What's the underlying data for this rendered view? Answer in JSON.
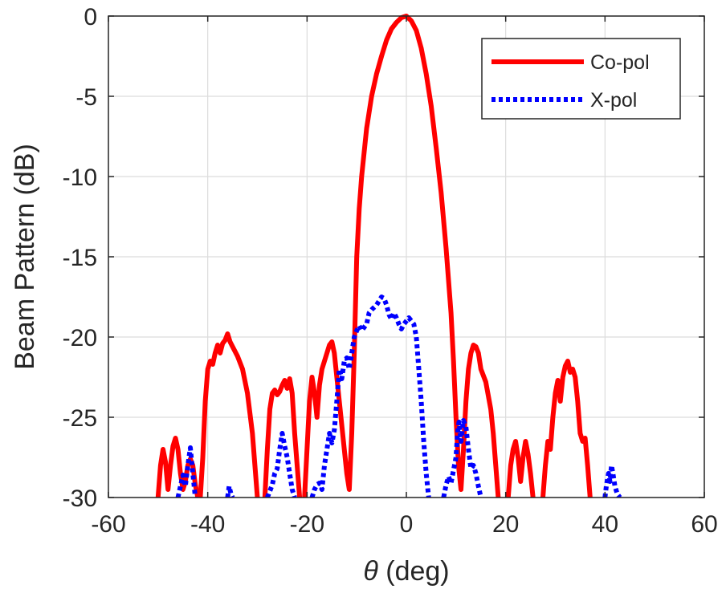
{
  "chart_data": {
    "type": "line",
    "xlabel_symbol": "θ",
    "xlabel_unit": " (deg)",
    "ylabel": "Beam Pattern (dB)",
    "xlim": [
      -60,
      60
    ],
    "ylim": [
      -30,
      0
    ],
    "xticks": [
      -60,
      -40,
      -20,
      0,
      20,
      40,
      60
    ],
    "yticks": [
      0,
      -5,
      -10,
      -15,
      -20,
      -25,
      -30
    ],
    "grid": true,
    "legend_location": "top-right",
    "series": [
      {
        "name": "Co-pol",
        "color": "#ff0000",
        "style": "solid",
        "segments": [
          [
            [
              -50,
              -30
            ],
            [
              -49.5,
              -28
            ],
            [
              -49,
              -27
            ],
            [
              -48.5,
              -27.8
            ],
            [
              -48,
              -29.5
            ],
            [
              -47.5,
              -28
            ],
            [
              -47,
              -26.8
            ],
            [
              -46.5,
              -26.3
            ],
            [
              -46,
              -27
            ],
            [
              -45.5,
              -28.5
            ],
            [
              -45,
              -29.5
            ],
            [
              -44.5,
              -29
            ],
            [
              -44,
              -28
            ],
            [
              -43.5,
              -27.6
            ],
            [
              -43,
              -28
            ],
            [
              -42.5,
              -29.2
            ],
            [
              -42,
              -30
            ]
          ],
          [
            [
              -41.5,
              -30
            ],
            [
              -41,
              -27.5
            ],
            [
              -40.5,
              -24
            ],
            [
              -40,
              -22
            ],
            [
              -39.5,
              -21.5
            ],
            [
              -39,
              -21.7
            ],
            [
              -38.5,
              -21
            ],
            [
              -38,
              -20.5
            ],
            [
              -37.5,
              -21
            ],
            [
              -37,
              -20.4
            ],
            [
              -36.5,
              -20.2
            ],
            [
              -36,
              -19.8
            ],
            [
              -35.5,
              -20.3
            ],
            [
              -35,
              -20.6
            ],
            [
              -34,
              -21.2
            ],
            [
              -33,
              -22
            ],
            [
              -32,
              -23.5
            ],
            [
              -31,
              -26
            ],
            [
              -30.5,
              -28
            ],
            [
              -30,
              -30
            ]
          ],
          [
            [
              -28.5,
              -30
            ],
            [
              -28,
              -27
            ],
            [
              -27.5,
              -24.5
            ],
            [
              -27,
              -23.5
            ],
            [
              -26.5,
              -23.3
            ],
            [
              -26,
              -23.6
            ],
            [
              -25.5,
              -23.4
            ],
            [
              -25,
              -23
            ],
            [
              -24.5,
              -22.7
            ],
            [
              -24,
              -23.2
            ],
            [
              -23.5,
              -22.6
            ],
            [
              -23,
              -23.5
            ],
            [
              -22.5,
              -26
            ],
            [
              -22,
              -28
            ],
            [
              -21.5,
              -30
            ]
          ],
          [
            [
              -20.5,
              -30
            ],
            [
              -20,
              -27
            ],
            [
              -19.5,
              -24
            ],
            [
              -19,
              -22.5
            ],
            [
              -18.5,
              -23.5
            ],
            [
              -18,
              -25
            ],
            [
              -17.5,
              -23
            ],
            [
              -17,
              -22
            ],
            [
              -16.5,
              -21.5
            ],
            [
              -16,
              -21
            ],
            [
              -15.5,
              -20.5
            ],
            [
              -15,
              -20.3
            ],
            [
              -14.5,
              -21
            ],
            [
              -14,
              -22.5
            ],
            [
              -13.5,
              -24
            ],
            [
              -13,
              -25.5
            ],
            [
              -12.5,
              -27
            ],
            [
              -12,
              -28.5
            ],
            [
              -11.5,
              -29.5
            ],
            [
              -11,
              -26
            ],
            [
              -10.5,
              -21
            ],
            [
              -10,
              -15
            ],
            [
              -9.5,
              -12
            ],
            [
              -9,
              -10
            ],
            [
              -8,
              -7
            ],
            [
              -7,
              -5
            ],
            [
              -6,
              -3.6
            ],
            [
              -5,
              -2.5
            ],
            [
              -4,
              -1.5
            ],
            [
              -3,
              -0.8
            ],
            [
              -2,
              -0.4
            ],
            [
              -1,
              -0.1
            ],
            [
              0,
              0
            ],
            [
              1,
              -0.3
            ],
            [
              2,
              -0.9
            ],
            [
              3,
              -2
            ],
            [
              4,
              -3.6
            ],
            [
              5,
              -5.6
            ],
            [
              6,
              -8.2
            ],
            [
              7,
              -11
            ],
            [
              8,
              -14.5
            ],
            [
              9,
              -18.5
            ],
            [
              9.5,
              -21.5
            ],
            [
              10,
              -25
            ],
            [
              10.5,
              -28
            ],
            [
              11,
              -29.5
            ],
            [
              11.5,
              -27
            ],
            [
              12,
              -24
            ],
            [
              12.5,
              -22
            ],
            [
              13,
              -21
            ],
            [
              13.5,
              -20.5
            ],
            [
              14,
              -20.6
            ],
            [
              14.5,
              -21
            ],
            [
              15,
              -22
            ],
            [
              16,
              -22.8
            ],
            [
              17,
              -24.5
            ],
            [
              17.5,
              -26
            ],
            [
              18,
              -28
            ],
            [
              18.5,
              -30
            ]
          ],
          [
            [
              20.5,
              -30
            ],
            [
              21,
              -28
            ],
            [
              21.5,
              -27
            ],
            [
              22,
              -26.5
            ],
            [
              22.5,
              -27.5
            ],
            [
              23,
              -29
            ],
            [
              23.5,
              -27.5
            ],
            [
              24,
              -26.5
            ],
            [
              24.5,
              -27.3
            ],
            [
              25,
              -28.5
            ],
            [
              25.5,
              -30
            ]
          ],
          [
            [
              27.5,
              -30
            ],
            [
              28,
              -28
            ],
            [
              28.5,
              -26.5
            ],
            [
              29,
              -27
            ],
            [
              29.5,
              -25
            ],
            [
              30,
              -23.5
            ],
            [
              30.5,
              -22.7
            ],
            [
              31,
              -24
            ],
            [
              31.5,
              -22.5
            ],
            [
              32,
              -21.8
            ],
            [
              32.5,
              -21.5
            ],
            [
              33,
              -22.2
            ],
            [
              33.5,
              -22
            ],
            [
              34,
              -22.5
            ],
            [
              34.5,
              -24
            ],
            [
              35,
              -26
            ],
            [
              35.5,
              -26.5
            ],
            [
              36,
              -26.3
            ],
            [
              36.5,
              -28
            ],
            [
              37,
              -30
            ]
          ]
        ]
      },
      {
        "name": "X-pol",
        "color": "#0000ff",
        "style": "dotted",
        "segments": [
          [
            [
              -46,
              -30
            ],
            [
              -45.5,
              -29.3
            ],
            [
              -45,
              -28.6
            ],
            [
              -44.5,
              -29.3
            ],
            [
              -44,
              -28
            ],
            [
              -43.5,
              -26.9
            ],
            [
              -43,
              -28.5
            ],
            [
              -42.5,
              -30
            ]
          ],
          [
            [
              -36,
              -30
            ],
            [
              -35.7,
              -29.3
            ],
            [
              -35.3,
              -29.8
            ],
            [
              -35,
              -30
            ]
          ],
          [
            [
              -28,
              -30
            ],
            [
              -27.5,
              -29.6
            ],
            [
              -27,
              -29.2
            ],
            [
              -26.5,
              -28.5
            ],
            [
              -26,
              -28.2
            ],
            [
              -25.5,
              -27
            ],
            [
              -25,
              -26
            ],
            [
              -24.5,
              -26.8
            ],
            [
              -24,
              -27.5
            ],
            [
              -23.5,
              -28.5
            ],
            [
              -23,
              -29.5
            ],
            [
              -22.5,
              -30
            ]
          ],
          [
            [
              -19,
              -30
            ],
            [
              -18.5,
              -29.5
            ],
            [
              -18,
              -29.2
            ],
            [
              -17.5,
              -29.1
            ],
            [
              -17,
              -29.5
            ],
            [
              -16.5,
              -28
            ],
            [
              -16,
              -27
            ],
            [
              -15.5,
              -26
            ],
            [
              -15,
              -26.6
            ],
            [
              -14.5,
              -25.8
            ],
            [
              -14,
              -24
            ],
            [
              -13.5,
              -22
            ],
            [
              -13,
              -22.6
            ],
            [
              -12.5,
              -21.5
            ],
            [
              -12,
              -21.3
            ],
            [
              -11.5,
              -22
            ],
            [
              -11,
              -21
            ],
            [
              -10.5,
              -20
            ],
            [
              -10,
              -19.6
            ],
            [
              -9.5,
              -19.3
            ],
            [
              -9,
              -19.6
            ],
            [
              -8,
              -19.2
            ],
            [
              -7.5,
              -18.5
            ],
            [
              -7,
              -18.3
            ],
            [
              -6,
              -18
            ],
            [
              -5,
              -17.5
            ],
            [
              -4.5,
              -17.6
            ],
            [
              -4,
              -18
            ],
            [
              -3.5,
              -18.6
            ],
            [
              -3,
              -18.9
            ],
            [
              -2.5,
              -18.5
            ],
            [
              -2,
              -18.8
            ],
            [
              -1.5,
              -19.2
            ],
            [
              -1,
              -19.5
            ],
            [
              -0.5,
              -19.2
            ],
            [
              0,
              -19
            ],
            [
              0.5,
              -18.8
            ],
            [
              1,
              -19
            ],
            [
              1.5,
              -19.2
            ],
            [
              2,
              -20
            ],
            [
              2.5,
              -22
            ],
            [
              3,
              -24
            ],
            [
              3.5,
              -26.5
            ],
            [
              4,
              -28.5
            ],
            [
              4.5,
              -30
            ]
          ],
          [
            [
              7.5,
              -30
            ],
            [
              8,
              -29.2
            ],
            [
              8.5,
              -28.7
            ],
            [
              9,
              -29.1
            ],
            [
              9.5,
              -28.3
            ],
            [
              10,
              -27.5
            ],
            [
              10.3,
              -26
            ],
            [
              10.6,
              -25.3
            ],
            [
              11,
              -26.5
            ],
            [
              11.5,
              -25.2
            ],
            [
              12,
              -25.6
            ],
            [
              12.5,
              -27
            ],
            [
              13,
              -28.2
            ],
            [
              13.5,
              -28
            ],
            [
              14,
              -28.5
            ],
            [
              14.5,
              -29.3
            ],
            [
              15,
              -30
            ]
          ],
          [
            [
              40,
              -30
            ],
            [
              40.3,
              -29.2
            ],
            [
              40.7,
              -28.5
            ],
            [
              41,
              -29
            ],
            [
              41.3,
              -28
            ],
            [
              41.6,
              -28.5
            ],
            [
              42,
              -29.3
            ],
            [
              42.5,
              -29.8
            ],
            [
              43,
              -30
            ]
          ]
        ]
      }
    ]
  }
}
